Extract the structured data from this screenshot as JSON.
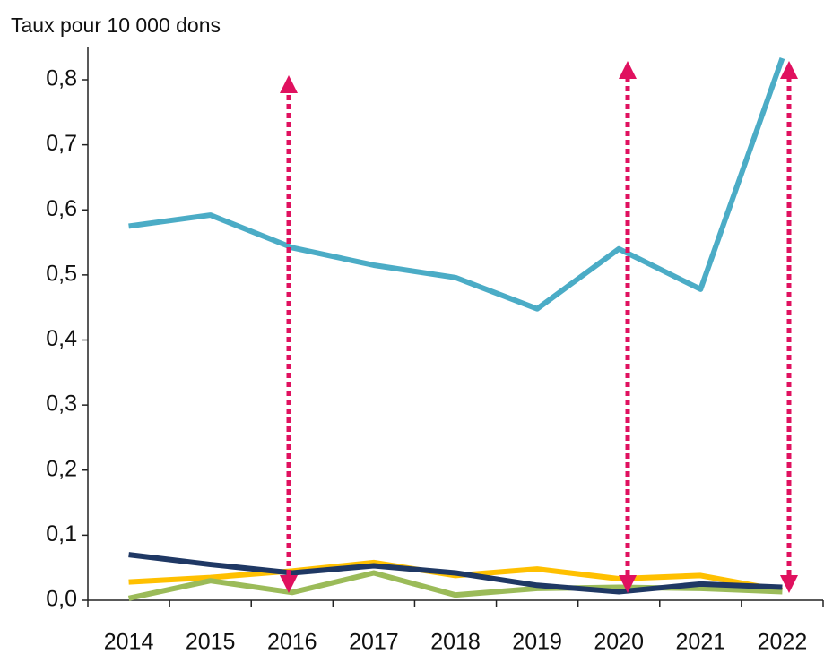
{
  "chart_data": {
    "type": "line",
    "y_axis_label": "Taux pour 10 000 dons",
    "categories": [
      "2014",
      "2015",
      "2016",
      "2017",
      "2018",
      "2019",
      "2020",
      "2021",
      "2022"
    ],
    "series": [
      {
        "color": "#4bacc6",
        "values": [
          0.575,
          0.592,
          0.542,
          0.515,
          0.496,
          0.448,
          0.54,
          0.478,
          0.833
        ]
      },
      {
        "color": "#ffc000",
        "values": [
          0.028,
          0.035,
          0.045,
          0.058,
          0.038,
          0.048,
          0.033,
          0.038,
          0.015
        ]
      },
      {
        "color": "#9bbb59",
        "values": [
          0.003,
          0.03,
          0.012,
          0.042,
          0.008,
          0.018,
          0.02,
          0.018,
          0.013
        ]
      },
      {
        "color": "#1f3864",
        "values": [
          0.07,
          0.055,
          0.042,
          0.053,
          0.042,
          0.023,
          0.013,
          0.025,
          0.02
        ]
      }
    ],
    "ylim": [
      0,
      0.85
    ],
    "yticks": [
      {
        "value": 0,
        "label": "0,0"
      },
      {
        "value": 0.1,
        "label": "0,1"
      },
      {
        "value": 0.2,
        "label": "0,2"
      },
      {
        "value": 0.3,
        "label": "0,3"
      },
      {
        "value": 0.4,
        "label": "0,4"
      },
      {
        "value": 0.5,
        "label": "0,5"
      },
      {
        "value": 0.6,
        "label": "0,6"
      },
      {
        "value": 0.7,
        "label": "0,7"
      },
      {
        "value": 0.8,
        "label": "0,8"
      }
    ],
    "grid": false
  }
}
